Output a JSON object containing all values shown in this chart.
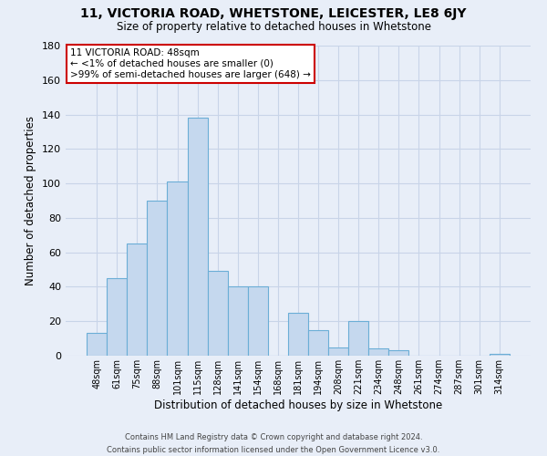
{
  "title_line1": "11, VICTORIA ROAD, WHETSTONE, LEICESTER, LE8 6JY",
  "title_line2": "Size of property relative to detached houses in Whetstone",
  "xlabel": "Distribution of detached houses by size in Whetstone",
  "ylabel": "Number of detached properties",
  "bar_labels": [
    "48sqm",
    "61sqm",
    "75sqm",
    "88sqm",
    "101sqm",
    "115sqm",
    "128sqm",
    "141sqm",
    "154sqm",
    "168sqm",
    "181sqm",
    "194sqm",
    "208sqm",
    "221sqm",
    "234sqm",
    "248sqm",
    "261sqm",
    "274sqm",
    "287sqm",
    "301sqm",
    "314sqm"
  ],
  "bar_values": [
    13,
    45,
    65,
    90,
    101,
    138,
    49,
    40,
    40,
    0,
    25,
    15,
    5,
    20,
    4,
    3,
    0,
    0,
    0,
    0,
    1
  ],
  "bar_color": "#c5d8ee",
  "bar_edge_color": "#6baed6",
  "annotation_box_text": "11 VICTORIA ROAD: 48sqm\n← <1% of detached houses are smaller (0)\n>99% of semi-detached houses are larger (648) →",
  "annotation_box_edge_color": "#cc0000",
  "annotation_box_fill": "#ffffff",
  "ylim": [
    0,
    180
  ],
  "yticks": [
    0,
    20,
    40,
    60,
    80,
    100,
    120,
    140,
    160,
    180
  ],
  "footer_line1": "Contains HM Land Registry data © Crown copyright and database right 2024.",
  "footer_line2": "Contains public sector information licensed under the Open Government Licence v3.0.",
  "background_color": "#e8eef8",
  "grid_color": "#d0d8e8"
}
